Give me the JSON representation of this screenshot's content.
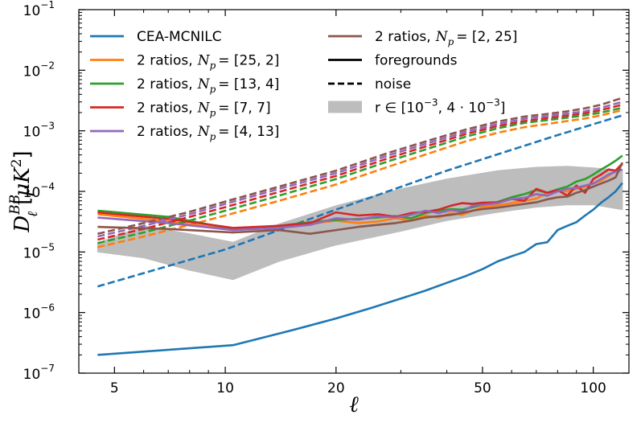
{
  "chart_data": {
    "type": "line",
    "xlabel": "ℓ",
    "ylabel": "D_ℓ^BB [μK²]",
    "xscale": "log",
    "yscale": "log",
    "xlim": [
      4.0,
      125
    ],
    "ylim": [
      1e-07,
      0.1
    ],
    "x_ticks": [
      {
        "value": 5,
        "label": "5"
      },
      {
        "value": 10,
        "label": "10"
      },
      {
        "value": 20,
        "label": "20"
      },
      {
        "value": 50,
        "label": "50"
      },
      {
        "value": 100,
        "label": "100"
      }
    ],
    "y_ticks": [
      {
        "value": 1e-07,
        "base": "10",
        "exp": "−7"
      },
      {
        "value": 1e-06,
        "base": "10",
        "exp": "−6"
      },
      {
        "value": 1e-05,
        "base": "10",
        "exp": "−5"
      },
      {
        "value": 0.0001,
        "base": "10",
        "exp": "−4"
      },
      {
        "value": 0.001,
        "base": "10",
        "exp": "−3"
      },
      {
        "value": 0.01,
        "base": "10",
        "exp": "−2"
      },
      {
        "value": 0.1,
        "base": "10",
        "exp": "−1"
      }
    ],
    "band": {
      "name": "r ∈ [10^−3, 4·10^−3]",
      "color": "#bdbdbd",
      "x": [
        4.5,
        6.0,
        8.0,
        10.5,
        14,
        20,
        30,
        40,
        55,
        70,
        85,
        100,
        120
      ],
      "lower": [
        1e-05,
        8e-06,
        5e-06,
        3.5e-06,
        7e-06,
        1.3e-05,
        2.2e-05,
        3.3e-05,
        4.5e-05,
        5.5e-05,
        6e-05,
        6e-05,
        5e-05
      ],
      "upper": [
        1.4e-05,
        2.7e-05,
        2e-05,
        1.45e-05,
        2.9e-05,
        5.8e-05,
        0.00011,
        0.00016,
        0.00022,
        0.00025,
        0.00026,
        0.000245,
        0.00022
      ]
    },
    "series": [
      {
        "name": "CEA-MCNILC",
        "color": "#1f77b4",
        "style": "foregrounds",
        "x": [
          4.5,
          10.5,
          15,
          20,
          25,
          30,
          35,
          40,
          45,
          50,
          55,
          60,
          65,
          70,
          75,
          80,
          85,
          90,
          95,
          100,
          105,
          110,
          115,
          120
        ],
        "values": [
          2e-07,
          2.9e-07,
          5e-07,
          8e-07,
          1.2e-06,
          1.7e-06,
          2.3e-06,
          3.1e-06,
          4e-06,
          5.2e-06,
          7e-06,
          8.5e-06,
          1e-05,
          1.35e-05,
          1.45e-05,
          2.3e-05,
          2.7e-05,
          3.1e-05,
          4e-05,
          5e-05,
          6.5e-05,
          8e-05,
          0.0001,
          0.000138
        ]
      },
      {
        "name": "CEA-MCNILC",
        "color": "#1f77b4",
        "style": "noise",
        "x": [
          4.5,
          10,
          20,
          40,
          80,
          120
        ],
        "values": [
          2.7e-06,
          1.1e-05,
          5e-05,
          0.00022,
          0.00085,
          0.0018
        ]
      },
      {
        "name": "2 ratios, N_p = [25, 2]",
        "color": "#ff7f0e",
        "style": "foregrounds",
        "x": [
          4.5,
          7,
          10.5,
          14,
          17,
          20,
          23,
          26,
          29,
          32,
          35,
          38,
          41,
          44,
          47,
          50,
          55,
          60,
          65,
          70,
          75,
          80,
          85,
          90,
          95,
          100,
          105,
          110,
          115,
          120
        ],
        "values": [
          4.2e-05,
          3.2e-05,
          2.3e-05,
          2.6e-05,
          2.9e-05,
          3.3e-05,
          3e-05,
          3.2e-05,
          3.6e-05,
          3.3e-05,
          4e-05,
          3.7e-05,
          4.4e-05,
          4.1e-05,
          4.8e-05,
          5.5e-05,
          5.9e-05,
          6.4e-05,
          7e-05,
          7.6e-05,
          9.5e-05,
          0.000102,
          0.0001,
          0.00011,
          0.000118,
          0.000135,
          0.00015,
          0.00018,
          0.00022,
          0.00028
        ]
      },
      {
        "name": "2 ratios, N_p = [25, 2]",
        "color": "#ff7f0e",
        "style": "noise",
        "x": [
          4.5,
          6,
          8,
          10,
          14,
          20,
          28,
          36,
          45,
          55,
          65,
          75,
          85,
          95,
          105,
          120
        ],
        "values": [
          1.2e-05,
          1.8e-05,
          2.8e-05,
          4e-05,
          7e-05,
          0.00013,
          0.00026,
          0.00043,
          0.00067,
          0.00093,
          0.00115,
          0.0013,
          0.00145,
          0.0016,
          0.0018,
          0.0022
        ]
      },
      {
        "name": "2 ratios, N_p = [13, 4]",
        "color": "#2ca02c",
        "style": "foregrounds",
        "x": [
          4.5,
          7,
          10.5,
          14,
          17,
          20,
          23,
          26,
          29,
          32,
          35,
          38,
          41,
          44,
          47,
          50,
          55,
          60,
          65,
          70,
          75,
          80,
          85,
          90,
          95,
          100,
          105,
          110,
          115,
          120
        ],
        "values": [
          4.8e-05,
          3.8e-05,
          2.4e-05,
          2.7e-05,
          3.1e-05,
          3.4e-05,
          3.5e-05,
          3.7e-05,
          3.9e-05,
          3.6e-05,
          4.4e-05,
          4.8e-05,
          5.1e-05,
          5e-05,
          5.5e-05,
          6e-05,
          6.7e-05,
          8e-05,
          9e-05,
          0.000105,
          9.5e-05,
          0.000108,
          0.00012,
          0.000145,
          0.00016,
          0.00019,
          0.00023,
          0.00027,
          0.00032,
          0.00039
        ]
      },
      {
        "name": "2 ratios, N_p = [13, 4]",
        "color": "#2ca02c",
        "style": "noise",
        "x": [
          4.5,
          6,
          8,
          10,
          14,
          20,
          28,
          36,
          45,
          55,
          65,
          75,
          85,
          95,
          105,
          120
        ],
        "values": [
          1.4e-05,
          2.1e-05,
          3.3e-05,
          4.8e-05,
          8.5e-05,
          0.00016,
          0.00032,
          0.00052,
          0.0008,
          0.0011,
          0.00135,
          0.0015,
          0.00165,
          0.0018,
          0.002,
          0.0024
        ]
      },
      {
        "name": "2 ratios, N_p = [7, 7]",
        "color": "#d62728",
        "style": "foregrounds",
        "x": [
          4.5,
          7,
          10.5,
          14,
          17,
          20,
          23,
          26,
          29,
          32,
          35,
          38,
          41,
          44,
          47,
          50,
          55,
          60,
          65,
          70,
          75,
          80,
          85,
          90,
          95,
          100,
          105,
          110,
          115,
          120
        ],
        "values": [
          4.5e-05,
          3.5e-05,
          2.5e-05,
          2.7e-05,
          3e-05,
          4.5e-05,
          4e-05,
          4.2e-05,
          3.8e-05,
          4.4e-05,
          4.6e-05,
          5e-05,
          5.8e-05,
          6.4e-05,
          6.2e-05,
          6.5e-05,
          6.6e-05,
          7.5e-05,
          7e-05,
          0.00011,
          9.5e-05,
          0.000105,
          8.5e-05,
          0.000125,
          9.5e-05,
          0.00016,
          0.00019,
          0.00023,
          0.00022,
          0.00029
        ]
      },
      {
        "name": "2 ratios, N_p = [7, 7]",
        "color": "#d62728",
        "style": "noise",
        "x": [
          4.5,
          6,
          8,
          10,
          14,
          20,
          28,
          36,
          45,
          55,
          65,
          75,
          85,
          95,
          105,
          120
        ],
        "values": [
          1.6e-05,
          2.4e-05,
          3.8e-05,
          5.5e-05,
          9.8e-05,
          0.00018,
          0.00036,
          0.00058,
          0.00088,
          0.0012,
          0.00145,
          0.00162,
          0.00178,
          0.00195,
          0.0022,
          0.0027
        ]
      },
      {
        "name": "2 ratios, N_p = [4, 13]",
        "color": "#9467bd",
        "style": "foregrounds",
        "x": [
          4.5,
          7,
          10.5,
          14,
          17,
          20,
          23,
          26,
          29,
          32,
          35,
          38,
          41,
          44,
          47,
          50,
          55,
          60,
          65,
          70,
          75,
          80,
          85,
          90,
          95,
          100,
          105,
          110,
          115,
          120
        ],
        "values": [
          3.7e-05,
          3e-05,
          2.3e-05,
          2.5e-05,
          2.8e-05,
          3.6e-05,
          3.4e-05,
          3.9e-05,
          3.7e-05,
          4.1e-05,
          4.8e-05,
          4.4e-05,
          4.9e-05,
          4.6e-05,
          5.8e-05,
          6e-05,
          6.4e-05,
          7.5e-05,
          7.8e-05,
          9e-05,
          8.5e-05,
          0.0001,
          0.00011,
          0.000115,
          0.000125,
          0.000135,
          0.00016,
          0.00019,
          0.00021,
          0.00023
        ]
      },
      {
        "name": "2 ratios, N_p = [4, 13]",
        "color": "#9467bd",
        "style": "noise",
        "x": [
          4.5,
          6,
          8,
          10,
          14,
          20,
          28,
          36,
          45,
          55,
          65,
          75,
          85,
          95,
          105,
          120
        ],
        "values": [
          1.8e-05,
          2.7e-05,
          4.2e-05,
          6.2e-05,
          0.00011,
          0.0002,
          0.0004,
          0.00064,
          0.00096,
          0.0013,
          0.00158,
          0.00175,
          0.00192,
          0.0021,
          0.0024,
          0.003
        ]
      },
      {
        "name": "2 ratios, N_p = [2, 25]",
        "color": "#8c564b",
        "style": "foregrounds",
        "x": [
          4.5,
          7,
          10.5,
          14,
          17,
          20,
          23,
          26,
          29,
          32,
          35,
          38,
          41,
          44,
          47,
          50,
          55,
          60,
          65,
          70,
          75,
          80,
          85,
          90,
          95,
          100,
          105,
          110,
          115,
          120
        ],
        "values": [
          2.6e-05,
          2.4e-05,
          2.1e-05,
          2.3e-05,
          2e-05,
          2.3e-05,
          2.6e-05,
          2.8e-05,
          3e-05,
          3.3e-05,
          3.7e-05,
          3.9e-05,
          4.1e-05,
          4.4e-05,
          4.8e-05,
          5.1e-05,
          5.4e-05,
          5.8e-05,
          6.2e-05,
          6.6e-05,
          7.4e-05,
          8e-05,
          8.2e-05,
          9.5e-05,
          0.000105,
          0.00012,
          0.000135,
          0.00015,
          0.00017,
          0.0003
        ]
      },
      {
        "name": "2 ratios, N_p = [2, 25]",
        "color": "#8c564b",
        "style": "noise",
        "x": [
          4.5,
          6,
          8,
          10,
          14,
          20,
          28,
          36,
          45,
          55,
          65,
          75,
          85,
          95,
          105,
          120
        ],
        "values": [
          2e-05,
          3e-05,
          4.6e-05,
          6.8e-05,
          0.00012,
          0.00022,
          0.00044,
          0.0007,
          0.00105,
          0.00142,
          0.00172,
          0.0019,
          0.0021,
          0.00235,
          0.0027,
          0.0035
        ]
      }
    ],
    "legend": {
      "placement": "top",
      "left_column": [
        {
          "label": "CEA-MCNILC",
          "color": "#1f77b4",
          "kind": "line",
          "text": "CEA-MCNILC"
        },
        {
          "label": "2 ratios, N_p = [25, 2]",
          "color": "#ff7f0e",
          "kind": "line",
          "text": "2 ratios,",
          "np": "[25, 2]"
        },
        {
          "label": "2 ratios, N_p = [13, 4]",
          "color": "#2ca02c",
          "kind": "line",
          "text": "2 ratios,",
          "np": "[13, 4]"
        },
        {
          "label": "2 ratios, N_p = [7, 7]",
          "color": "#d62728",
          "kind": "line",
          "text": "2 ratios,",
          "np": "[7, 7]"
        },
        {
          "label": "2 ratios, N_p = [4, 13]",
          "color": "#9467bd",
          "kind": "line",
          "text": "2 ratios,",
          "np": "[4, 13]"
        }
      ],
      "right_column": [
        {
          "label": "2 ratios, N_p = [2, 25]",
          "color": "#8c564b",
          "kind": "line",
          "text": "2 ratios,",
          "np": "[2, 25]"
        },
        {
          "label": "foregrounds",
          "color": "#000000",
          "kind": "solid",
          "text": "foregrounds"
        },
        {
          "label": "noise",
          "color": "#000000",
          "kind": "dashed",
          "text": "noise"
        },
        {
          "label": "r ∈ [10^−3, 4·10^−3]",
          "color": "#bdbdbd",
          "kind": "band",
          "text": "r ∈ [10",
          "exp1": "−3",
          "mid": ", 4 · 10",
          "exp2": "−3",
          "end": "]"
        }
      ]
    }
  }
}
